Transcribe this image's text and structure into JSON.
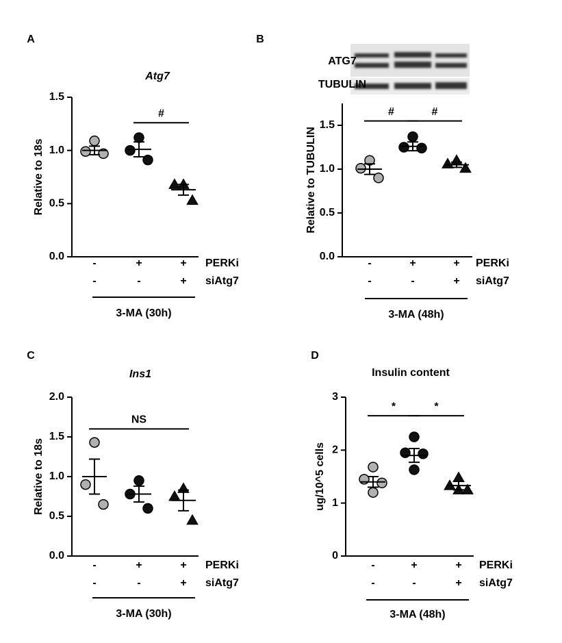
{
  "chart_data": [
    {
      "type": "dot",
      "panel": "A",
      "title": "Atg7",
      "ylabel": "Relative to 18s",
      "ylim": [
        0,
        1.5
      ],
      "yticks": [
        {
          "value": 0,
          "label": "0.0"
        },
        0.5,
        {
          "value": 1,
          "label": "1.0"
        },
        1.5
      ],
      "groups": [
        {
          "marker": "circle",
          "color": "#b0b0b0",
          "points": [
            1.09,
            0.99,
            0.97
          ],
          "mean": 1.0,
          "sem": 0.04
        },
        {
          "marker": "circle",
          "color": "#111111",
          "points": [
            1.12,
            1.0,
            0.91
          ],
          "mean": 1.01,
          "sem": 0.07
        },
        {
          "marker": "triangle",
          "color": "#111111",
          "points": [
            0.68,
            0.68,
            0.53
          ],
          "mean": 0.63,
          "sem": 0.05
        }
      ],
      "conditions": [
        {
          "name": "PERKi",
          "labels": [
            "-",
            "+",
            "+"
          ]
        },
        {
          "name": "siAtg7",
          "labels": [
            "-",
            "-",
            "+"
          ]
        }
      ],
      "treatment": "3-MA (30h)",
      "annotations": [
        {
          "text": "#",
          "groups": [
            1,
            2
          ],
          "y": 1.26
        }
      ]
    },
    {
      "type": "dot",
      "panel": "B",
      "ylabel": "Relative to TUBULIN",
      "blot_labels": [
        "ATG7",
        "TUBULIN"
      ],
      "ylim": [
        0,
        1.75
      ],
      "yticks": [
        {
          "value": 0,
          "label": "0.0"
        },
        0.5,
        {
          "value": 1,
          "label": "1.0"
        },
        1.5
      ],
      "groups": [
        {
          "marker": "circle",
          "color": "#b0b0b0",
          "points": [
            1.1,
            1.01,
            0.9
          ],
          "mean": 1.0,
          "sem": 0.06
        },
        {
          "marker": "circle",
          "color": "#111111",
          "points": [
            1.37,
            1.25,
            1.24
          ],
          "mean": 1.26,
          "sem": 0.05
        },
        {
          "marker": "triangle",
          "color": "#111111",
          "points": [
            1.1,
            1.06,
            1.01
          ],
          "mean": 1.05,
          "sem": 0.03
        }
      ],
      "conditions": [
        {
          "name": "PERKi",
          "labels": [
            "-",
            "+",
            "+"
          ]
        },
        {
          "name": "siAtg7",
          "labels": [
            "-",
            "-",
            "+"
          ]
        }
      ],
      "treatment": "3-MA (48h)",
      "annotations": [
        {
          "text": "#",
          "groups": [
            0,
            1
          ],
          "y": 1.55
        },
        {
          "text": "#",
          "groups": [
            1,
            2
          ],
          "y": 1.55
        }
      ]
    },
    {
      "type": "dot",
      "panel": "C",
      "title": "Ins1",
      "ylabel": "Relative to 18s",
      "ylim": [
        0,
        2
      ],
      "yticks": [
        {
          "value": 0,
          "label": "0.0"
        },
        0.5,
        {
          "value": 1,
          "label": "1.0"
        },
        1.5,
        {
          "value": 2,
          "label": "2.0"
        }
      ],
      "groups": [
        {
          "marker": "circle",
          "color": "#b0b0b0",
          "points": [
            1.43,
            0.9,
            0.65
          ],
          "mean": 1.0,
          "sem": 0.22
        },
        {
          "marker": "circle",
          "color": "#111111",
          "points": [
            0.95,
            0.78,
            0.6
          ],
          "mean": 0.78,
          "sem": 0.1
        },
        {
          "marker": "triangle",
          "color": "#111111",
          "points": [
            0.85,
            0.75,
            0.45
          ],
          "mean": 0.7,
          "sem": 0.13
        }
      ],
      "conditions": [
        {
          "name": "PERKi",
          "labels": [
            "-",
            "+",
            "+"
          ]
        },
        {
          "name": "siAtg7",
          "labels": [
            "-",
            "-",
            "+"
          ]
        }
      ],
      "treatment": "3-MA (30h)",
      "annotations": [
        {
          "text": "NS",
          "groups": [
            0,
            2
          ],
          "y": 1.6
        }
      ]
    },
    {
      "type": "dot",
      "panel": "D",
      "title": "Insulin content",
      "ylabel": "ug/10^5 cells",
      "ylim": [
        0,
        3
      ],
      "yticks": [
        0,
        1,
        2,
        3
      ],
      "groups": [
        {
          "marker": "circle",
          "color": "#b0b0b0",
          "points": [
            1.68,
            1.45,
            1.38,
            1.2
          ],
          "mean": 1.4,
          "sem": 0.1
        },
        {
          "marker": "circle",
          "color": "#111111",
          "points": [
            2.25,
            1.95,
            1.93,
            1.63
          ],
          "mean": 1.9,
          "sem": 0.13
        },
        {
          "marker": "triangle",
          "color": "#111111",
          "points": [
            1.48,
            1.33,
            1.25,
            1.25
          ],
          "mean": 1.33,
          "sem": 0.08
        }
      ],
      "conditions": [
        {
          "name": "PERKi",
          "labels": [
            "-",
            "+",
            "+"
          ]
        },
        {
          "name": "siAtg7",
          "labels": [
            "-",
            "-",
            "+"
          ]
        }
      ],
      "treatment": "3-MA (48h)",
      "annotations": [
        {
          "text": "*",
          "groups": [
            0,
            1
          ],
          "y": 2.65
        },
        {
          "text": "*",
          "groups": [
            1,
            2
          ],
          "y": 2.65
        }
      ]
    }
  ]
}
